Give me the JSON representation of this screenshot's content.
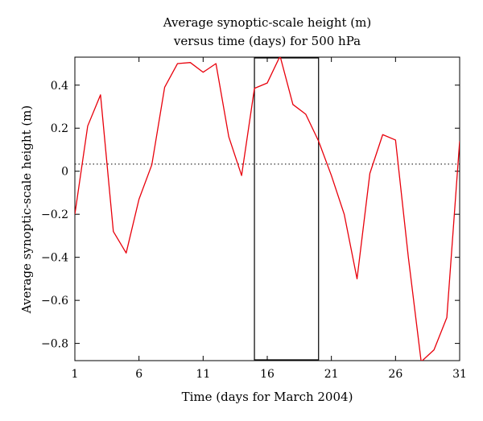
{
  "chart_data": {
    "type": "line",
    "title_lines": [
      "Average synoptic-scale height (m)",
      "versus time (days) for 500 hPa"
    ],
    "xlabel": "Time (days for March 2004)",
    "ylabel": "Average synoptic-scale height (m)",
    "xlim": [
      1,
      31
    ],
    "ylim": [
      -0.88,
      0.53
    ],
    "xticks": [
      1,
      6,
      11,
      16,
      21,
      26,
      31
    ],
    "xtick_labels": [
      "1",
      "6",
      "11",
      "16",
      "21",
      "26",
      "31"
    ],
    "yticks": [
      -0.8,
      -0.6,
      -0.4,
      -0.2,
      0,
      0.2,
      0.4
    ],
    "ytick_labels": [
      "−0.8",
      "−0.6",
      "−0.4",
      "−0.2",
      "0",
      "0.2",
      "0.4"
    ],
    "series": [
      {
        "color": "#e8000b",
        "x": [
          1,
          2,
          3,
          4,
          5,
          6,
          7,
          8,
          9,
          10,
          11,
          12,
          13,
          14,
          15,
          16,
          17,
          18,
          19,
          20,
          21,
          22,
          23,
          24,
          25,
          26,
          27,
          28,
          29,
          30,
          31
        ],
        "y": [
          -0.2,
          0.21,
          0.355,
          -0.28,
          -0.38,
          -0.13,
          0.03,
          0.39,
          0.5,
          0.505,
          0.46,
          0.5,
          0.16,
          -0.02,
          0.385,
          0.41,
          0.535,
          0.31,
          0.265,
          0.14,
          -0.02,
          -0.2,
          -0.5,
          -0.01,
          0.17,
          0.145,
          -0.4,
          -0.885,
          -0.83,
          -0.68,
          0.14
        ]
      }
    ],
    "reference_line": {
      "y": 0.033,
      "style": "dotted",
      "color": "#000000"
    },
    "highlight_box": {
      "x_start": 15,
      "x_end": 20,
      "color": "#000000"
    },
    "grid": false,
    "legend": "none"
  }
}
